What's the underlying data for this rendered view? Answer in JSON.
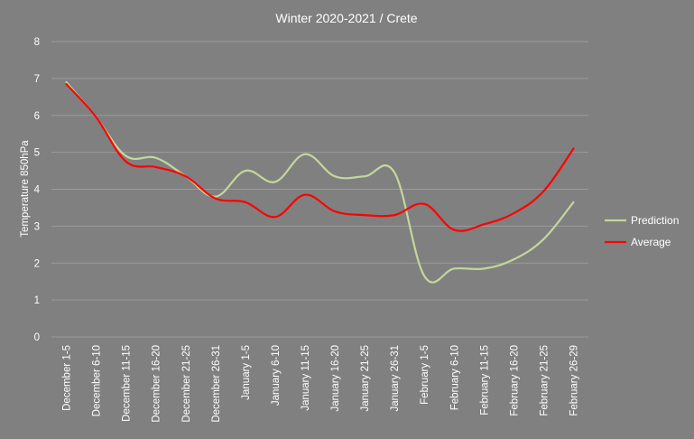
{
  "chart_data": {
    "type": "line",
    "title": "Winter 2020-2021 / Crete",
    "xlabel": "",
    "ylabel": "Temperature 850hPa",
    "ylim": [
      0,
      8
    ],
    "yticks": [
      0,
      1,
      2,
      3,
      4,
      5,
      6,
      7,
      8
    ],
    "grid": true,
    "legend_position": "right",
    "categories": [
      "December 1-5",
      "December 6-10",
      "December 11-15",
      "December 16-20",
      "December 21-25",
      "December 26-31",
      "January 1-5",
      "January 6-10",
      "January 11-15",
      "January 16-20",
      "January 21-25",
      "January 26-31",
      "February 1-5",
      "February 6-10",
      "February 11-15",
      "February 16-20",
      "February 21-25",
      "February 26-29"
    ],
    "series": [
      {
        "name": "Prediction",
        "color": "#c4d79b",
        "values": [
          6.9,
          5.95,
          4.9,
          4.85,
          4.35,
          3.8,
          4.5,
          4.2,
          4.95,
          4.35,
          4.35,
          4.45,
          1.65,
          1.85,
          1.85,
          2.1,
          2.65,
          3.65
        ]
      },
      {
        "name": "Average",
        "color": "#ff0000",
        "values": [
          6.85,
          5.95,
          4.75,
          4.6,
          4.35,
          3.75,
          3.65,
          3.25,
          3.85,
          3.4,
          3.3,
          3.3,
          3.6,
          2.9,
          3.05,
          3.35,
          3.95,
          5.1
        ]
      }
    ]
  }
}
